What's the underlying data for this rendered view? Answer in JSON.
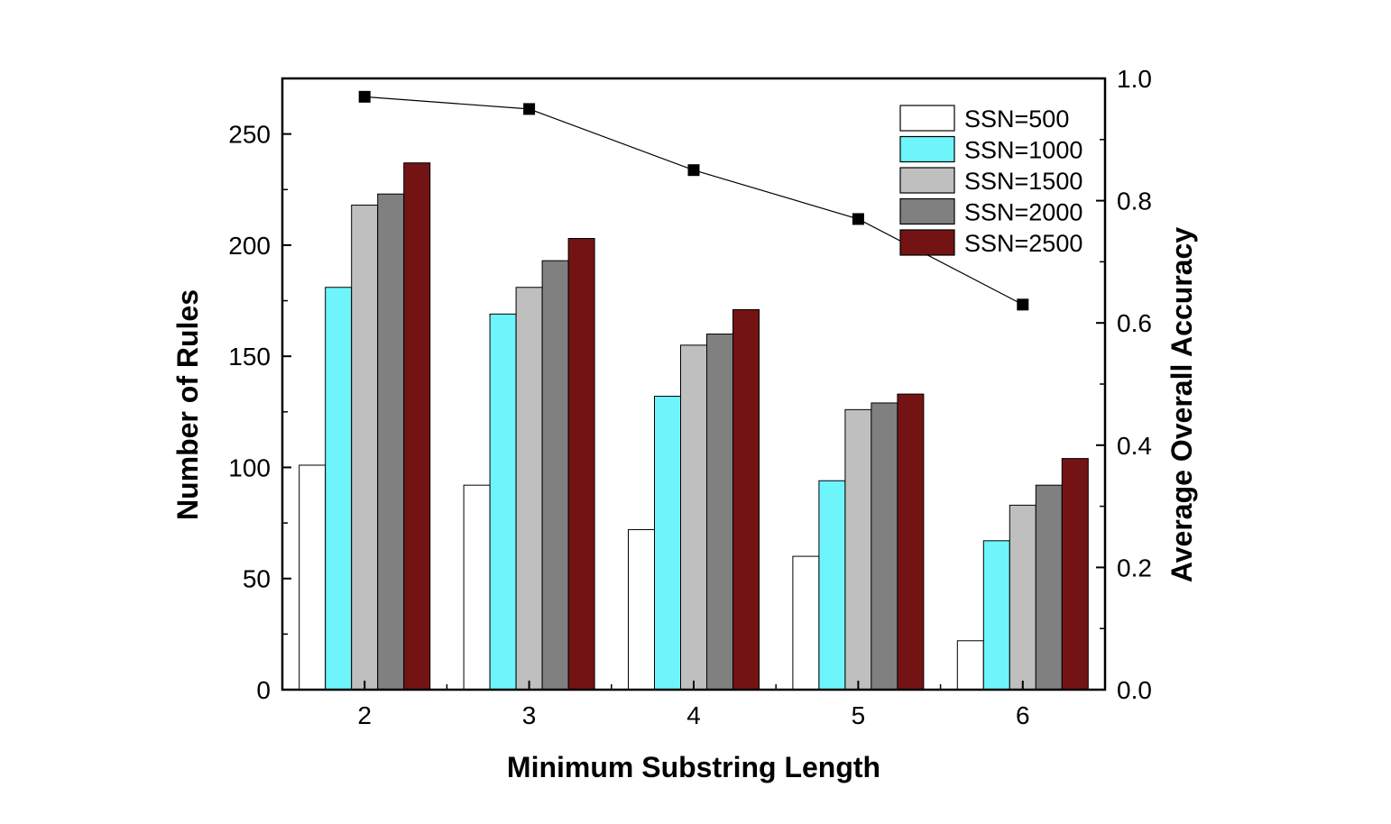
{
  "chart_data": {
    "type": "bar",
    "categories": [
      "2",
      "3",
      "4",
      "5",
      "6"
    ],
    "series": [
      {
        "name": "SSN=500",
        "color": "#ffffff",
        "values": [
          101,
          92,
          72,
          60,
          22
        ]
      },
      {
        "name": "SSN=1000",
        "color": "#6ef5fb",
        "values": [
          181,
          169,
          132,
          94,
          67
        ]
      },
      {
        "name": "SSN=1500",
        "color": "#bfbfbf",
        "values": [
          218,
          181,
          155,
          126,
          83
        ]
      },
      {
        "name": "SSN=2000",
        "color": "#808080",
        "values": [
          223,
          193,
          160,
          129,
          92
        ]
      },
      {
        "name": "SSN=2500",
        "color": "#741313",
        "values": [
          237,
          203,
          171,
          133,
          104
        ]
      }
    ],
    "line_series": {
      "axis": "right",
      "type": "line",
      "color": "#000000",
      "marker": "square",
      "values": [
        0.97,
        0.95,
        0.85,
        0.77,
        0.63
      ]
    },
    "xlabel": "Minimum Substring Length",
    "ylabel": "Number of Rules",
    "y2label": "Average Overall Accuracy",
    "ylim": [
      0,
      275
    ],
    "y2lim": [
      0,
      1.0
    ],
    "yticks": [
      "0",
      "50",
      "100",
      "150",
      "200",
      "250"
    ],
    "y2ticks": [
      "0.0",
      "0.2",
      "0.4",
      "0.6",
      "0.8",
      "1.0"
    ],
    "grid": false,
    "legend_position": "top-right"
  }
}
